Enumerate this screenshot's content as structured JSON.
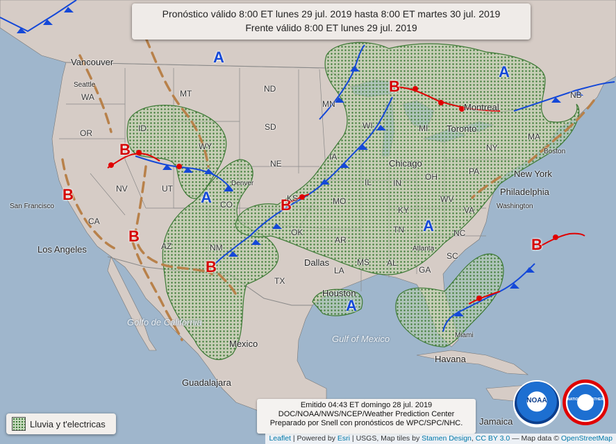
{
  "title": {
    "line1": "Pronóstico válido 8:00 ET lunes 29 jul. 2019 hasta 8:00 ET martes 30 jul. 2019",
    "line2": "Frente válido 8:00 ET lunes 29 jul. 2019"
  },
  "issued": {
    "line1": "Emitido 04:43 ET domingo 28 jul. 2019",
    "line2": "DOC/NOAA/NWS/NCEP/Weather Prediction Center",
    "line3": "Preparado por Snell con pronósticos de WPC/SPC/NHC."
  },
  "legend": {
    "label": "Lluvia y t'electricas",
    "swatch_color": "#3e7a36"
  },
  "attribution": {
    "leaflet": "Leaflet",
    "powered": " | Powered by ",
    "esri": "Esri",
    "usgs": " | USGS, Map tiles by ",
    "stamen": "Stamen Design",
    "comma": ", ",
    "cc": "CC BY 3.0",
    "mapdata": " — Map data © ",
    "osm": "OpenStreetMap"
  },
  "pressure_centers": [
    {
      "type": "high",
      "label": "A"
    },
    {
      "type": "high",
      "label": "A"
    },
    {
      "type": "high",
      "label": "A"
    },
    {
      "type": "high",
      "label": "A"
    },
    {
      "type": "high",
      "label": "A"
    },
    {
      "type": "low",
      "label": "B"
    },
    {
      "type": "low",
      "label": "B"
    },
    {
      "type": "low",
      "label": "B"
    },
    {
      "type": "low",
      "label": "B"
    },
    {
      "type": "low",
      "label": "B"
    },
    {
      "type": "low",
      "label": "B"
    },
    {
      "type": "low",
      "label": "B"
    }
  ],
  "states": [
    "WA",
    "OR",
    "ID",
    "MT",
    "WY",
    "ND",
    "SD",
    "NE",
    "MN",
    "IA",
    "WI",
    "IL",
    "IN",
    "OH",
    "MI",
    "NY",
    "PA",
    "KS",
    "MO",
    "KY",
    "WV",
    "VA",
    "NC",
    "TN",
    "SC",
    "GA",
    "AL",
    "MS",
    "AR",
    "LA",
    "OK",
    "TX",
    "NM",
    "CO",
    "UT",
    "NV",
    "CA",
    "AZ",
    "MA",
    "NB"
  ],
  "cities": [
    "Vancouver",
    "Seattle",
    "San Francisco",
    "Los Angeles",
    "Denver",
    "Dallas",
    "Houston",
    "Chicago",
    "Toronto",
    "Montreal",
    "New York",
    "Philadelphia",
    "Washington",
    "Boston",
    "Atlanta",
    "Miami",
    "Havana",
    "Guadalajara"
  ],
  "features": {
    "gulf_mexico": "Gulf of Mexico",
    "gulf_california": "Golfo de California",
    "mexico": "Mexico",
    "jamaica": "Jamaica"
  },
  "logos": {
    "noaa": "NOAA",
    "nws": "NATIONAL WEATHER SERVICE"
  },
  "colors": {
    "cold_front": "#1448d8",
    "warm_front": "#e00000",
    "trough": "#b8814a",
    "precip": "#3e7a36",
    "land": "#d6ccc6",
    "water": "#9fb6cc"
  }
}
